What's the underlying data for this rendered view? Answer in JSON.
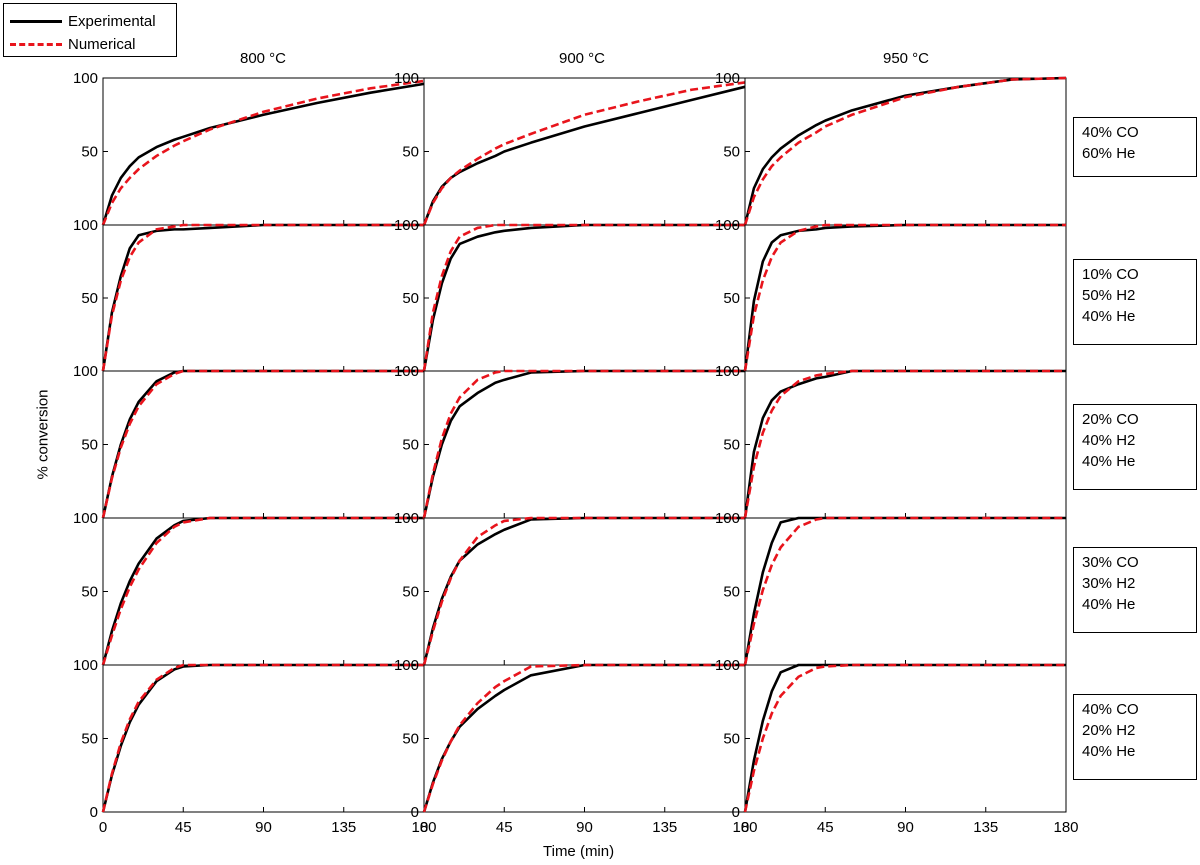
{
  "chart_data": {
    "type": "line",
    "layout": "grid 5 rows x 3 columns",
    "legend": {
      "placement": "top-left",
      "entries": [
        {
          "name": "Experimental",
          "color": "#000000",
          "style": "solid"
        },
        {
          "name": "Numerical",
          "color": "#e8141c",
          "style": "dashed"
        }
      ]
    },
    "xlabel": "Time (min)",
    "ylabel": "% conversion",
    "xlim": [
      0,
      180
    ],
    "ylim": [
      0,
      100
    ],
    "xticks": [
      "0",
      "45",
      "90",
      "135",
      "180"
    ],
    "yticks": [
      "0",
      "50",
      "100"
    ],
    "columns": [
      "800 °C",
      "900 °C",
      "950 °C"
    ],
    "rows": [
      {
        "conditions": [
          "40% CO",
          "60% He"
        ]
      },
      {
        "conditions": [
          "10% CO",
          "50% H2",
          "40% He"
        ]
      },
      {
        "conditions": [
          "20% CO",
          "40% H2",
          "40% He"
        ]
      },
      {
        "conditions": [
          "30% CO",
          "30% H2",
          "40% He"
        ]
      },
      {
        "conditions": [
          "40% CO",
          "20% H2",
          "40% He"
        ]
      }
    ],
    "x": [
      0,
      5,
      10,
      15,
      20,
      30,
      40,
      45,
      60,
      90,
      120,
      150,
      180
    ],
    "panels": [
      [
        {
          "experimental": [
            0,
            20,
            32,
            40,
            46,
            53,
            58,
            60,
            66,
            75,
            83,
            90,
            96
          ],
          "numerical": [
            0,
            15,
            25,
            32,
            38,
            47,
            54,
            57,
            65,
            77,
            86,
            93,
            98
          ]
        },
        {
          "experimental": [
            0,
            40,
            65,
            84,
            93,
            96,
            97,
            97,
            98,
            100,
            100,
            100,
            100
          ],
          "numerical": [
            0,
            38,
            62,
            78,
            88,
            97,
            99,
            100,
            100,
            100,
            100,
            100,
            100
          ]
        },
        {
          "experimental": [
            0,
            28,
            50,
            67,
            79,
            93,
            99,
            100,
            100,
            100,
            100,
            100,
            100
          ],
          "numerical": [
            0,
            27,
            48,
            64,
            76,
            91,
            98,
            100,
            100,
            100,
            100,
            100,
            100
          ]
        },
        {
          "experimental": [
            0,
            23,
            42,
            57,
            69,
            86,
            95,
            98,
            100,
            100,
            100,
            100,
            100
          ],
          "numerical": [
            0,
            20,
            38,
            53,
            65,
            83,
            94,
            97,
            100,
            100,
            100,
            100,
            100
          ]
        },
        {
          "experimental": [
            0,
            25,
            45,
            61,
            73,
            89,
            97,
            99,
            100,
            100,
            100,
            100,
            100
          ],
          "numerical": [
            0,
            26,
            47,
            63,
            75,
            90,
            98,
            100,
            100,
            100,
            100,
            100,
            100
          ]
        }
      ],
      [
        {
          "experimental": [
            0,
            16,
            26,
            32,
            36,
            42,
            47,
            50,
            56,
            67,
            76,
            85,
            94
          ],
          "numerical": [
            0,
            15,
            25,
            32,
            37,
            45,
            52,
            55,
            62,
            75,
            84,
            92,
            97
          ]
        },
        {
          "experimental": [
            0,
            35,
            60,
            77,
            87,
            92,
            95,
            96,
            98,
            100,
            100,
            100,
            100
          ],
          "numerical": [
            0,
            40,
            65,
            82,
            92,
            98,
            100,
            100,
            100,
            100,
            100,
            100,
            100
          ]
        },
        {
          "experimental": [
            0,
            28,
            50,
            66,
            76,
            85,
            92,
            94,
            99,
            100,
            100,
            100,
            100
          ],
          "numerical": [
            0,
            30,
            54,
            71,
            82,
            94,
            99,
            100,
            100,
            100,
            100,
            100,
            100
          ]
        },
        {
          "experimental": [
            0,
            25,
            45,
            60,
            71,
            82,
            89,
            92,
            99,
            100,
            100,
            100,
            100
          ],
          "numerical": [
            0,
            23,
            43,
            59,
            71,
            87,
            95,
            98,
            100,
            100,
            100,
            100,
            100
          ]
        },
        {
          "experimental": [
            0,
            20,
            36,
            48,
            58,
            70,
            79,
            83,
            93,
            100,
            100,
            100,
            100
          ],
          "numerical": [
            0,
            19,
            35,
            48,
            59,
            74,
            85,
            89,
            99,
            100,
            100,
            100,
            100
          ]
        }
      ],
      [
        {
          "experimental": [
            0,
            25,
            38,
            46,
            52,
            61,
            68,
            71,
            78,
            88,
            94,
            99,
            100
          ],
          "numerical": [
            0,
            19,
            31,
            40,
            46,
            56,
            63,
            67,
            75,
            87,
            94,
            99,
            100
          ]
        },
        {
          "experimental": [
            0,
            48,
            75,
            88,
            93,
            96,
            97,
            98,
            99,
            100,
            100,
            100,
            100
          ],
          "numerical": [
            0,
            38,
            62,
            78,
            88,
            96,
            99,
            100,
            100,
            100,
            100,
            100,
            100
          ]
        },
        {
          "experimental": [
            0,
            45,
            68,
            80,
            86,
            91,
            95,
            96,
            100,
            100,
            100,
            100,
            100
          ],
          "numerical": [
            0,
            35,
            58,
            73,
            83,
            93,
            97,
            98,
            100,
            100,
            100,
            100,
            100
          ]
        },
        {
          "experimental": [
            0,
            35,
            63,
            83,
            97,
            100,
            100,
            100,
            100,
            100,
            100,
            100,
            100
          ],
          "numerical": [
            0,
            28,
            51,
            68,
            80,
            94,
            99,
            100,
            100,
            100,
            100,
            100,
            100
          ]
        },
        {
          "experimental": [
            0,
            35,
            62,
            82,
            95,
            100,
            100,
            100,
            100,
            100,
            100,
            100,
            100
          ],
          "numerical": [
            0,
            28,
            50,
            67,
            79,
            92,
            98,
            99,
            100,
            100,
            100,
            100,
            100
          ]
        }
      ]
    ]
  }
}
